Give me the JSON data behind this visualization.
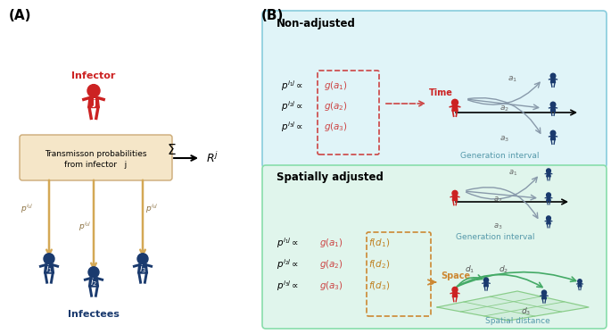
{
  "panel_A_label": "(A)",
  "panel_B_label": "(B)",
  "infector_label": "Infector",
  "infectees_label": "Infectees",
  "trans_prob_text": "Transmisson probabilities\nfrom infector  j",
  "Rj_label": "R^j",
  "non_adjusted_title": "Non-adjusted",
  "spatially_adjusted_title": "Spatially adjusted",
  "gen_interval_label": "Generation interval",
  "spatial_distance_label": "Spatial distance",
  "time_label": "Time",
  "space_label": "Space",
  "red_color": "#CC2222",
  "dark_red_color": "#8B1A1A",
  "navy_color": "#1a3a6e",
  "gold_arrow": "#D4A855",
  "tan_box": "#F5E6C8",
  "light_blue_bg": "#E0F4F8",
  "light_green_bg": "#E0F5EC",
  "dashed_red_box": "#CC4444",
  "dashed_orange_box": "#CC8833",
  "gray_arrow": "#888888",
  "teal_text": "#5599AA",
  "green_curve": "#44AA66",
  "dark_navy": "#1a3a6e"
}
